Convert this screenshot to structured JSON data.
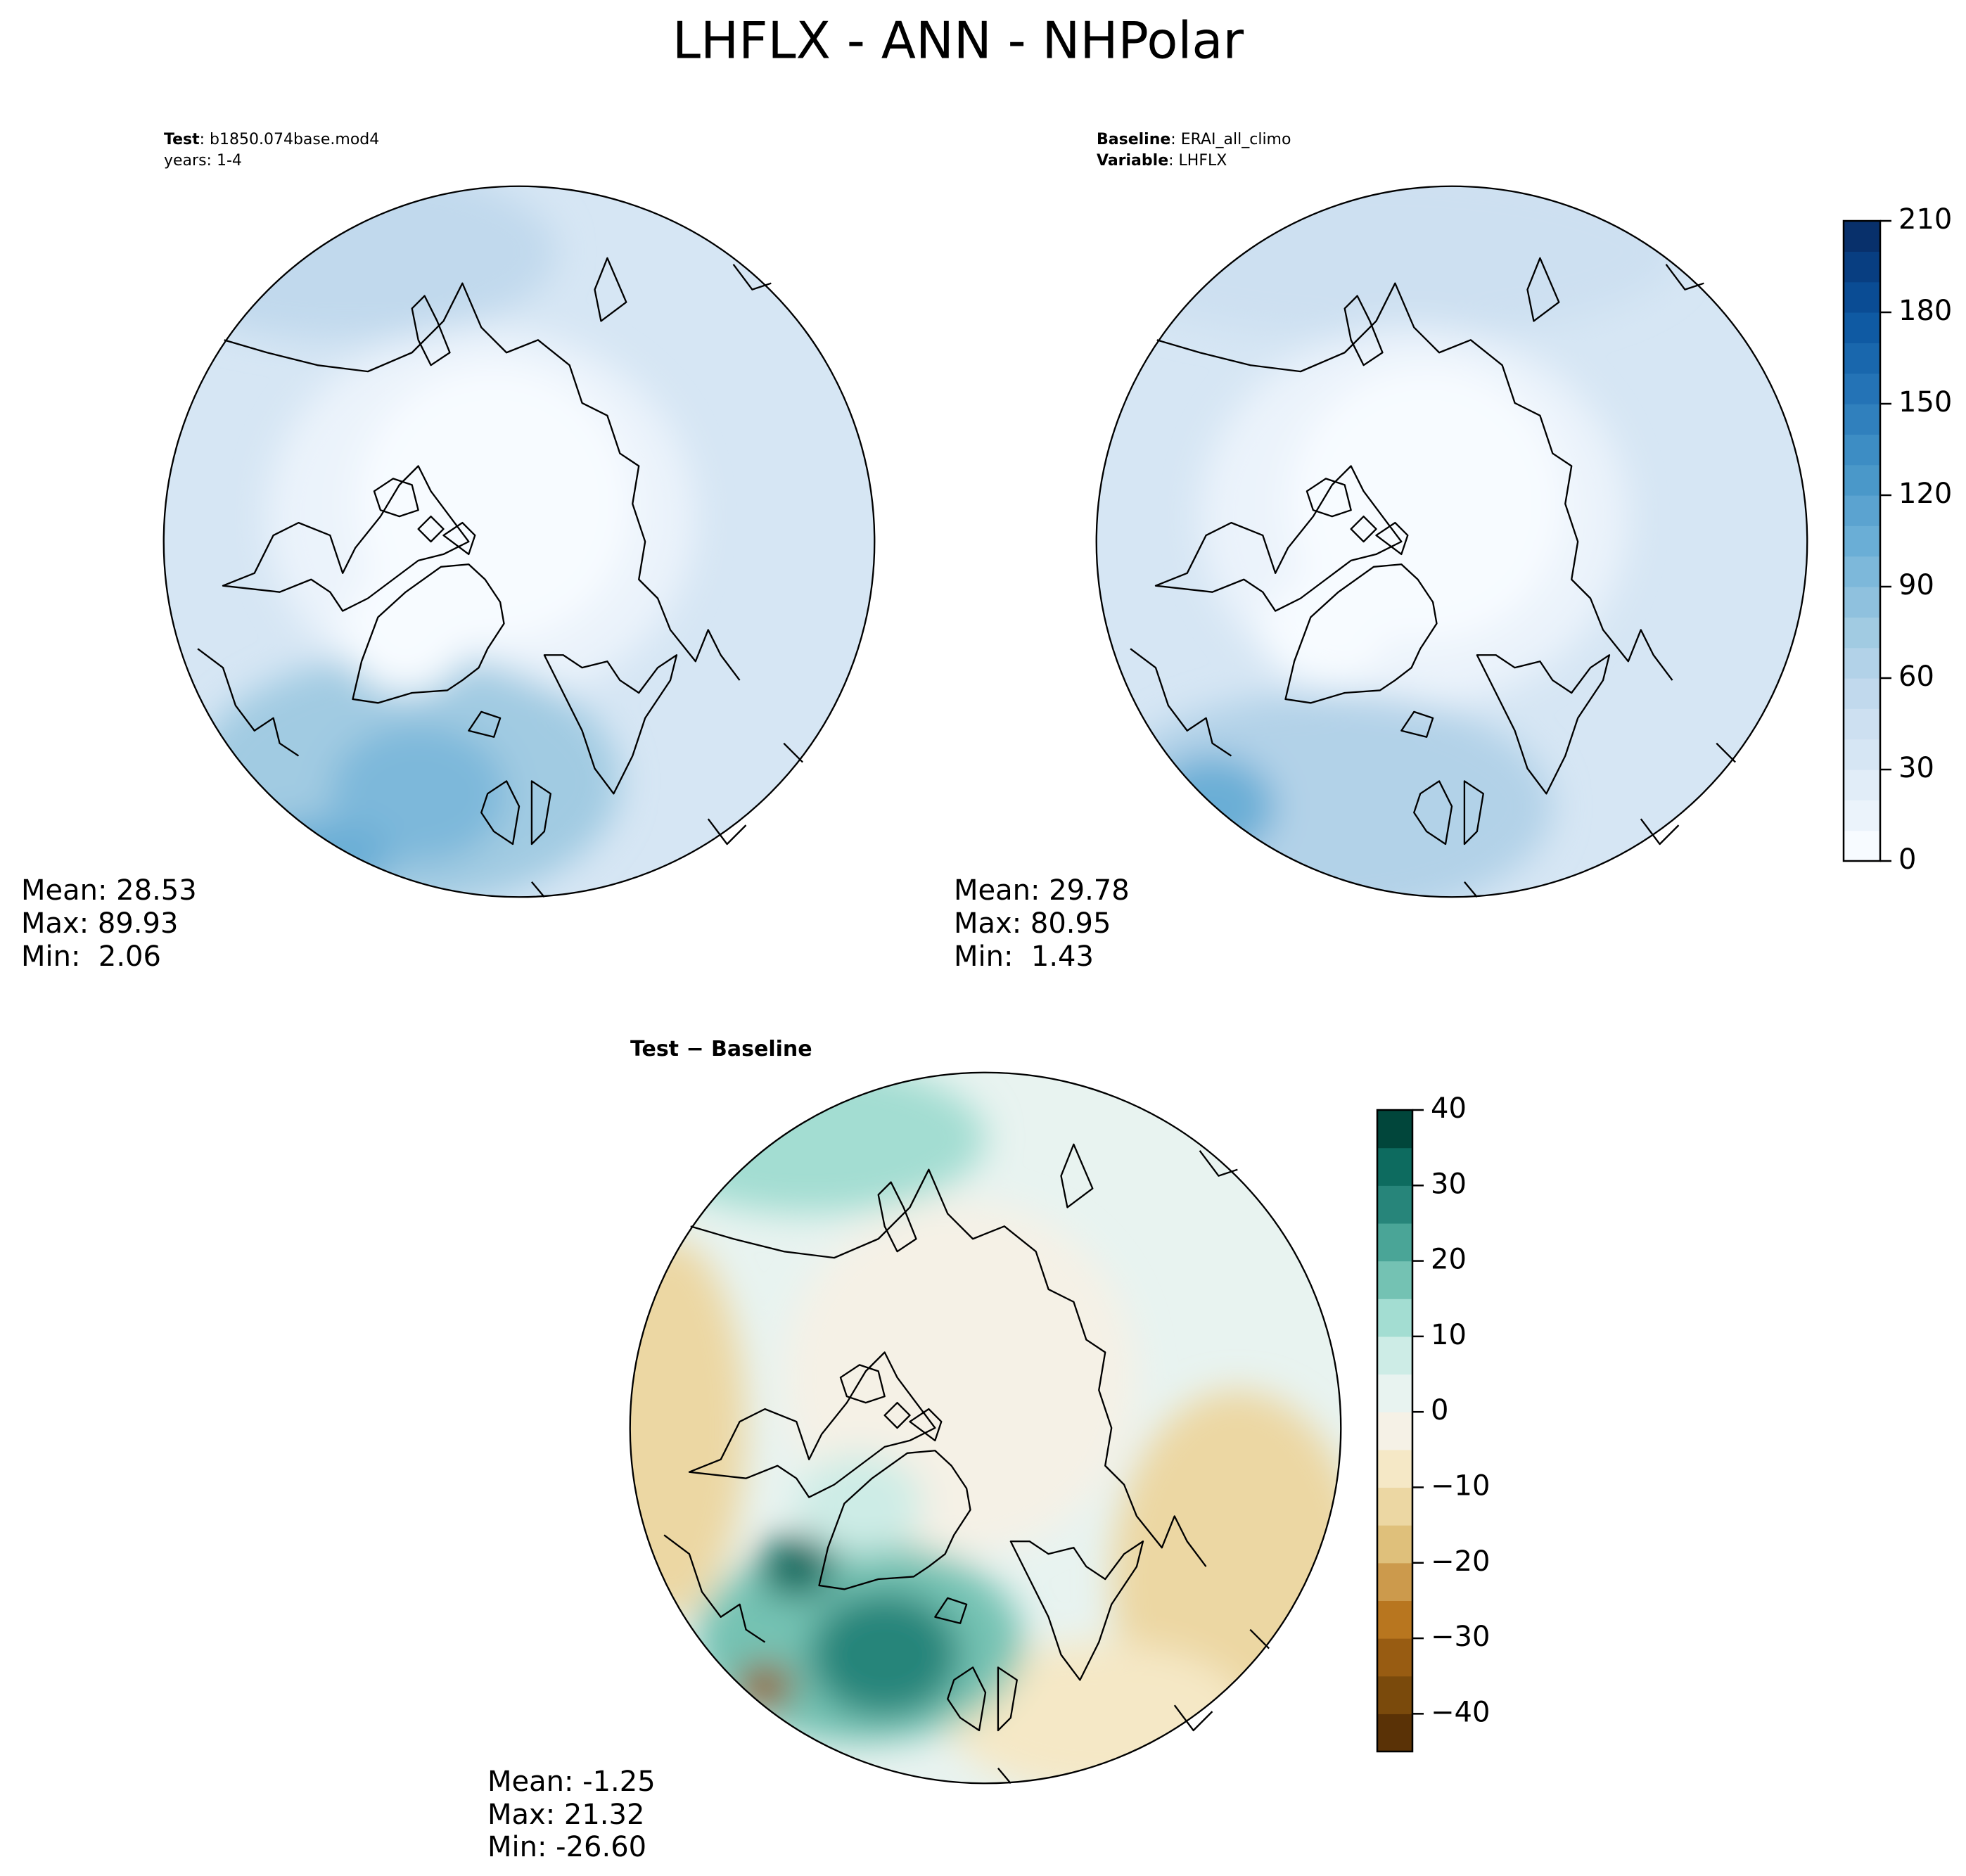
{
  "title": "LHFLX - ANN - NHPolar",
  "panels": [
    {
      "header": [
        {
          "key": "Test",
          "text": ": b1850.074base.mod4"
        },
        {
          "text": "years: 1-4"
        }
      ],
      "stats": [
        "Mean: 28.53",
        "Max: 89.93",
        "Min:  2.06"
      ]
    },
    {
      "header": [
        {
          "key": "Baseline",
          "text": ": ERAI_all_climo"
        },
        {
          "key": "Variable",
          "text": ": LHFLX"
        }
      ],
      "stats": [
        "Mean: 29.78",
        "Max: 80.95",
        "Min:  1.43"
      ]
    },
    {
      "header": [
        {
          "key": "Test − Baseline"
        }
      ],
      "stats": [
        "Mean: -1.25",
        "Max: 21.32",
        "Min: -26.60"
      ]
    }
  ],
  "colorbars": [
    {
      "lim": [
        0,
        210
      ],
      "ticks": [
        0,
        30,
        60,
        90,
        120,
        150,
        180,
        210
      ],
      "colors": [
        "#f7fbff",
        "#ebf3fb",
        "#e1edf8",
        "#d6e6f4",
        "#cde0f1",
        "#c1d9ed",
        "#b2d2e8",
        "#a1cbe2",
        "#8fc1de",
        "#7db8da",
        "#6aaed6",
        "#5ba3d0",
        "#4a98c9",
        "#3d8dc4",
        "#3080bd",
        "#2473b6",
        "#1967ad",
        "#0f5aa3",
        "#0a4c94",
        "#083e81",
        "#08306b"
      ]
    },
    {
      "lim": [
        -45,
        40
      ],
      "ticks": [
        {
          "value": -40,
          "label": "−40"
        },
        {
          "value": -30,
          "label": "−30"
        },
        {
          "value": -20,
          "label": "−20"
        },
        {
          "value": -10,
          "label": "−10"
        },
        0,
        10,
        20,
        30,
        40
      ],
      "colors": [
        "#5a3206",
        "#7a4a0c",
        "#985c12",
        "#b8761f",
        "#cc9a4c",
        "#dfc07b",
        "#ecd7a3",
        "#f5e8c6",
        "#f5f1e6",
        "#e8f3f0",
        "#cdece6",
        "#a3ddd2",
        "#74c2b3",
        "#4aa597",
        "#27857a",
        "#0d6b5f",
        "#01463b"
      ]
    }
  ]
}
